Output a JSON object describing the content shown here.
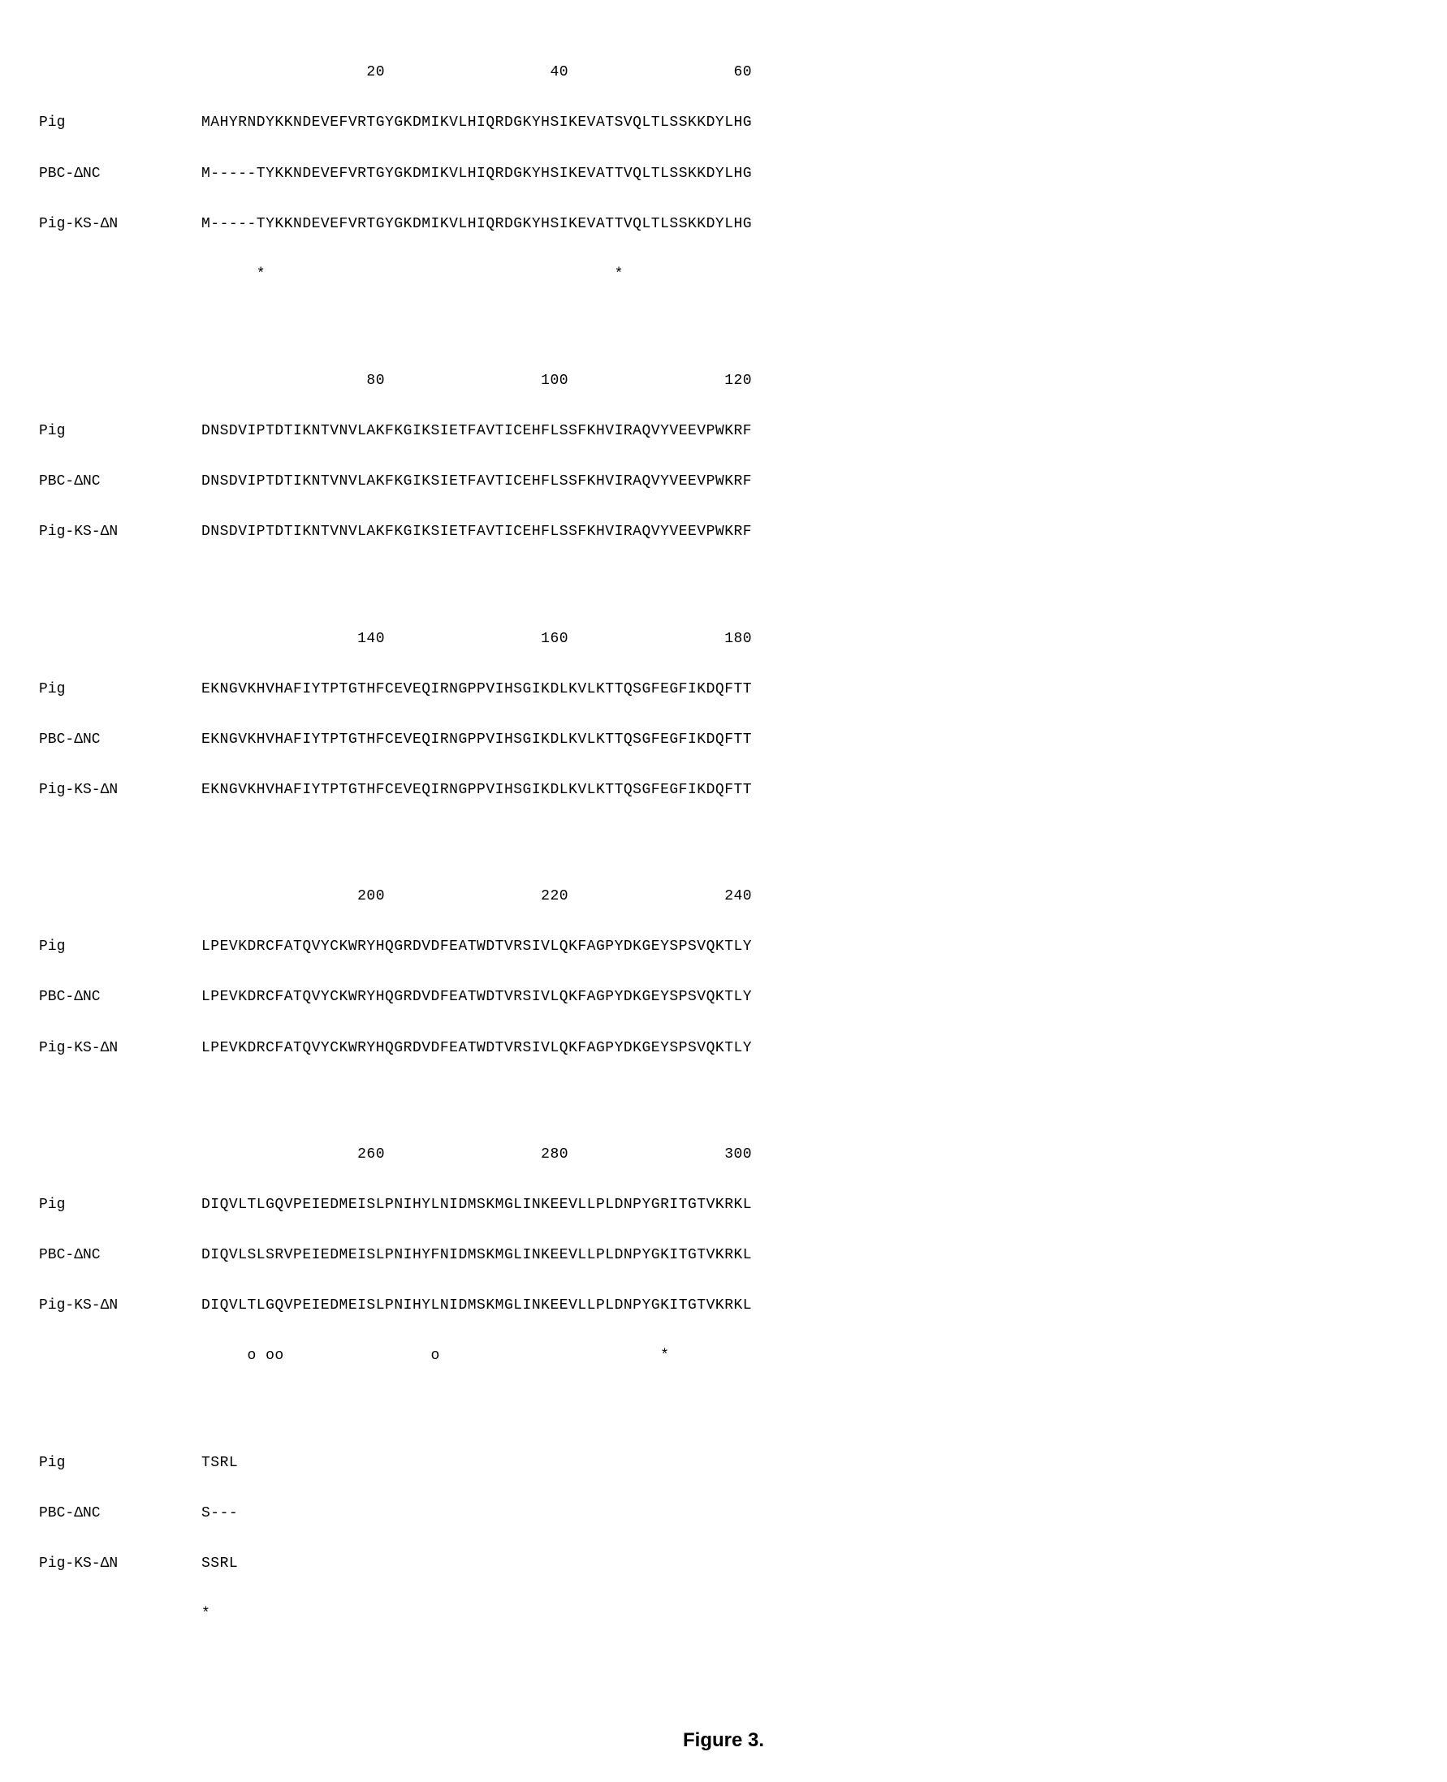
{
  "alignment": {
    "font_family": "Courier New",
    "font_size_pt": 14,
    "text_color": "#000000",
    "background_color": "#ffffff",
    "label_width_ch": 16,
    "blocks": [
      {
        "ruler": "                  20                  40                  60",
        "rows": [
          {
            "label": "Pig",
            "seq": "MAHYRNDYKKNDEVEFVRTGYGKDMIKVLHIQRDGKYHSIKEVATSVQLTLSSKKDYLHG"
          },
          {
            "label": "PBC-ΔNC",
            "seq": "M-----TYKKNDEVEFVRTGYGKDMIKVLHIQRDGKYHSIKEVATTVQLTLSSKKDYLHG"
          },
          {
            "label": "Pig-KS-ΔN",
            "seq": "M-----TYKKNDEVEFVRTGYGKDMIKVLHIQRDGKYHSIKEVATTVQLTLSSKKDYLHG"
          }
        ],
        "markers": "      *                                      *              "
      },
      {
        "ruler": "                  80                 100                 120",
        "rows": [
          {
            "label": "Pig",
            "seq": "DNSDVIPTDTIKNTVNVLAKFKGIKSIETFAVTICEHFLSSFKHVIRAQVYVEEVPWKRF"
          },
          {
            "label": "PBC-ΔNC",
            "seq": "DNSDVIPTDTIKNTVNVLAKFKGIKSIETFAVTICEHFLSSFKHVIRAQVYVEEVPWKRF"
          },
          {
            "label": "Pig-KS-ΔN",
            "seq": "DNSDVIPTDTIKNTVNVLAKFKGIKSIETFAVTICEHFLSSFKHVIRAQVYVEEVPWKRF"
          }
        ],
        "markers": ""
      },
      {
        "ruler": "                 140                 160                 180",
        "rows": [
          {
            "label": "Pig",
            "seq": "EKNGVKHVHAFIYTPTGTHFCEVEQIRNGPPVIHSGIKDLKVLKTTQSGFEGFIKDQFTT"
          },
          {
            "label": "PBC-ΔNC",
            "seq": "EKNGVKHVHAFIYTPTGTHFCEVEQIRNGPPVIHSGIKDLKVLKTTQSGFEGFIKDQFTT"
          },
          {
            "label": "Pig-KS-ΔN",
            "seq": "EKNGVKHVHAFIYTPTGTHFCEVEQIRNGPPVIHSGIKDLKVLKTTQSGFEGFIKDQFTT"
          }
        ],
        "markers": ""
      },
      {
        "ruler": "                 200                 220                 240",
        "rows": [
          {
            "label": "Pig",
            "seq": "LPEVKDRCFATQVYCKWRYHQGRDVDFEATWDTVRSIVLQKFAGPYDKGEYSPSVQKTLY"
          },
          {
            "label": "PBC-ΔNC",
            "seq": "LPEVKDRCFATQVYCKWRYHQGRDVDFEATWDTVRSIVLQKFAGPYDKGEYSPSVQKTLY"
          },
          {
            "label": "Pig-KS-ΔN",
            "seq": "LPEVKDRCFATQVYCKWRYHQGRDVDFEATWDTVRSIVLQKFAGPYDKGEYSPSVQKTLY"
          }
        ],
        "markers": ""
      },
      {
        "ruler": "                 260                 280                 300",
        "rows": [
          {
            "label": "Pig",
            "seq": "DIQVLTLGQVPEIEDMEISLPNIHYLNIDMSKMGLINKEEVLLPLDNPYGRITGTVKRKL"
          },
          {
            "label": "PBC-ΔNC",
            "seq": "DIQVLSLSRVPEIEDMEISLPNIHYFNIDMSKMGLINKEEVLLPLDNPYGKITGTVKRKL"
          },
          {
            "label": "Pig-KS-ΔN",
            "seq": "DIQVLTLGQVPEIEDMEISLPNIHYLNIDMSKMGLINKEEVLLPLDNPYGKITGTVKRKL"
          }
        ],
        "markers": "     o oo                o                        *         "
      },
      {
        "ruler": "",
        "rows": [
          {
            "label": "Pig",
            "seq": "TSRL"
          },
          {
            "label": "PBC-ΔNC",
            "seq": "S---"
          },
          {
            "label": "Pig-KS-ΔN",
            "seq": "SSRL"
          }
        ],
        "markers": "*   "
      }
    ]
  },
  "caption": {
    "text": "Figure 3.",
    "font_family": "Arial",
    "font_size_pt": 18,
    "font_weight": "bold"
  }
}
